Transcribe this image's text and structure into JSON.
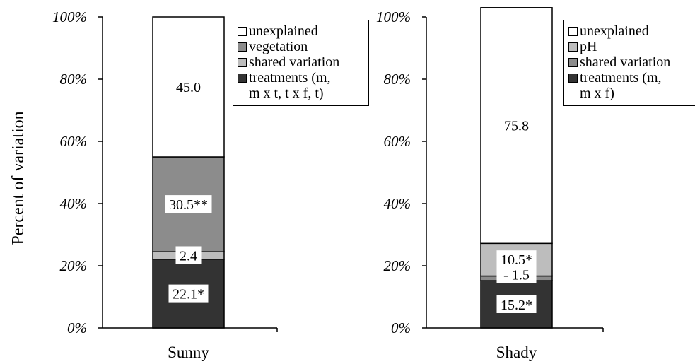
{
  "chart_data": {
    "type": "bar",
    "stacked": true,
    "ylabel": "Percent of variation",
    "ylim": [
      0,
      100
    ],
    "yticks": [
      "0%",
      "20%",
      "40%",
      "60%",
      "80%",
      "100%"
    ],
    "panels": [
      {
        "category": "Sunny",
        "segments": [
          {
            "name": "treatments (m,\nm x t, t x f, t)",
            "value": 22.1,
            "label": "22.1*",
            "color": "#333333"
          },
          {
            "name": "shared variation",
            "value": 2.4,
            "label": "2.4",
            "color": "#bdbdbd"
          },
          {
            "name": "vegetation",
            "value": 30.5,
            "label": "30.5**",
            "color": "#8c8c8c"
          },
          {
            "name": "unexplained",
            "value": 45.0,
            "label": "45.0",
            "color": "#ffffff"
          }
        ],
        "legend": [
          "unexplained",
          "vegetation",
          "shared variation",
          "treatments (m,\nm x t, t x f, t)"
        ]
      },
      {
        "category": "Shady",
        "segments": [
          {
            "name": "treatments (m,\nm x f)",
            "value": 15.2,
            "label": "15.2*",
            "color": "#333333"
          },
          {
            "name": "shared variation",
            "value": -1.5,
            "label": "- 1.5",
            "color": "#8c8c8c"
          },
          {
            "name": "pH",
            "value": 10.5,
            "label": "10.5*",
            "color": "#bdbdbd"
          },
          {
            "name": "unexplained",
            "value": 75.8,
            "label": "75.8",
            "color": "#ffffff"
          }
        ],
        "legend": [
          "unexplained",
          "pH",
          "shared variation",
          "treatments (m,\nm x f)"
        ]
      }
    ]
  }
}
